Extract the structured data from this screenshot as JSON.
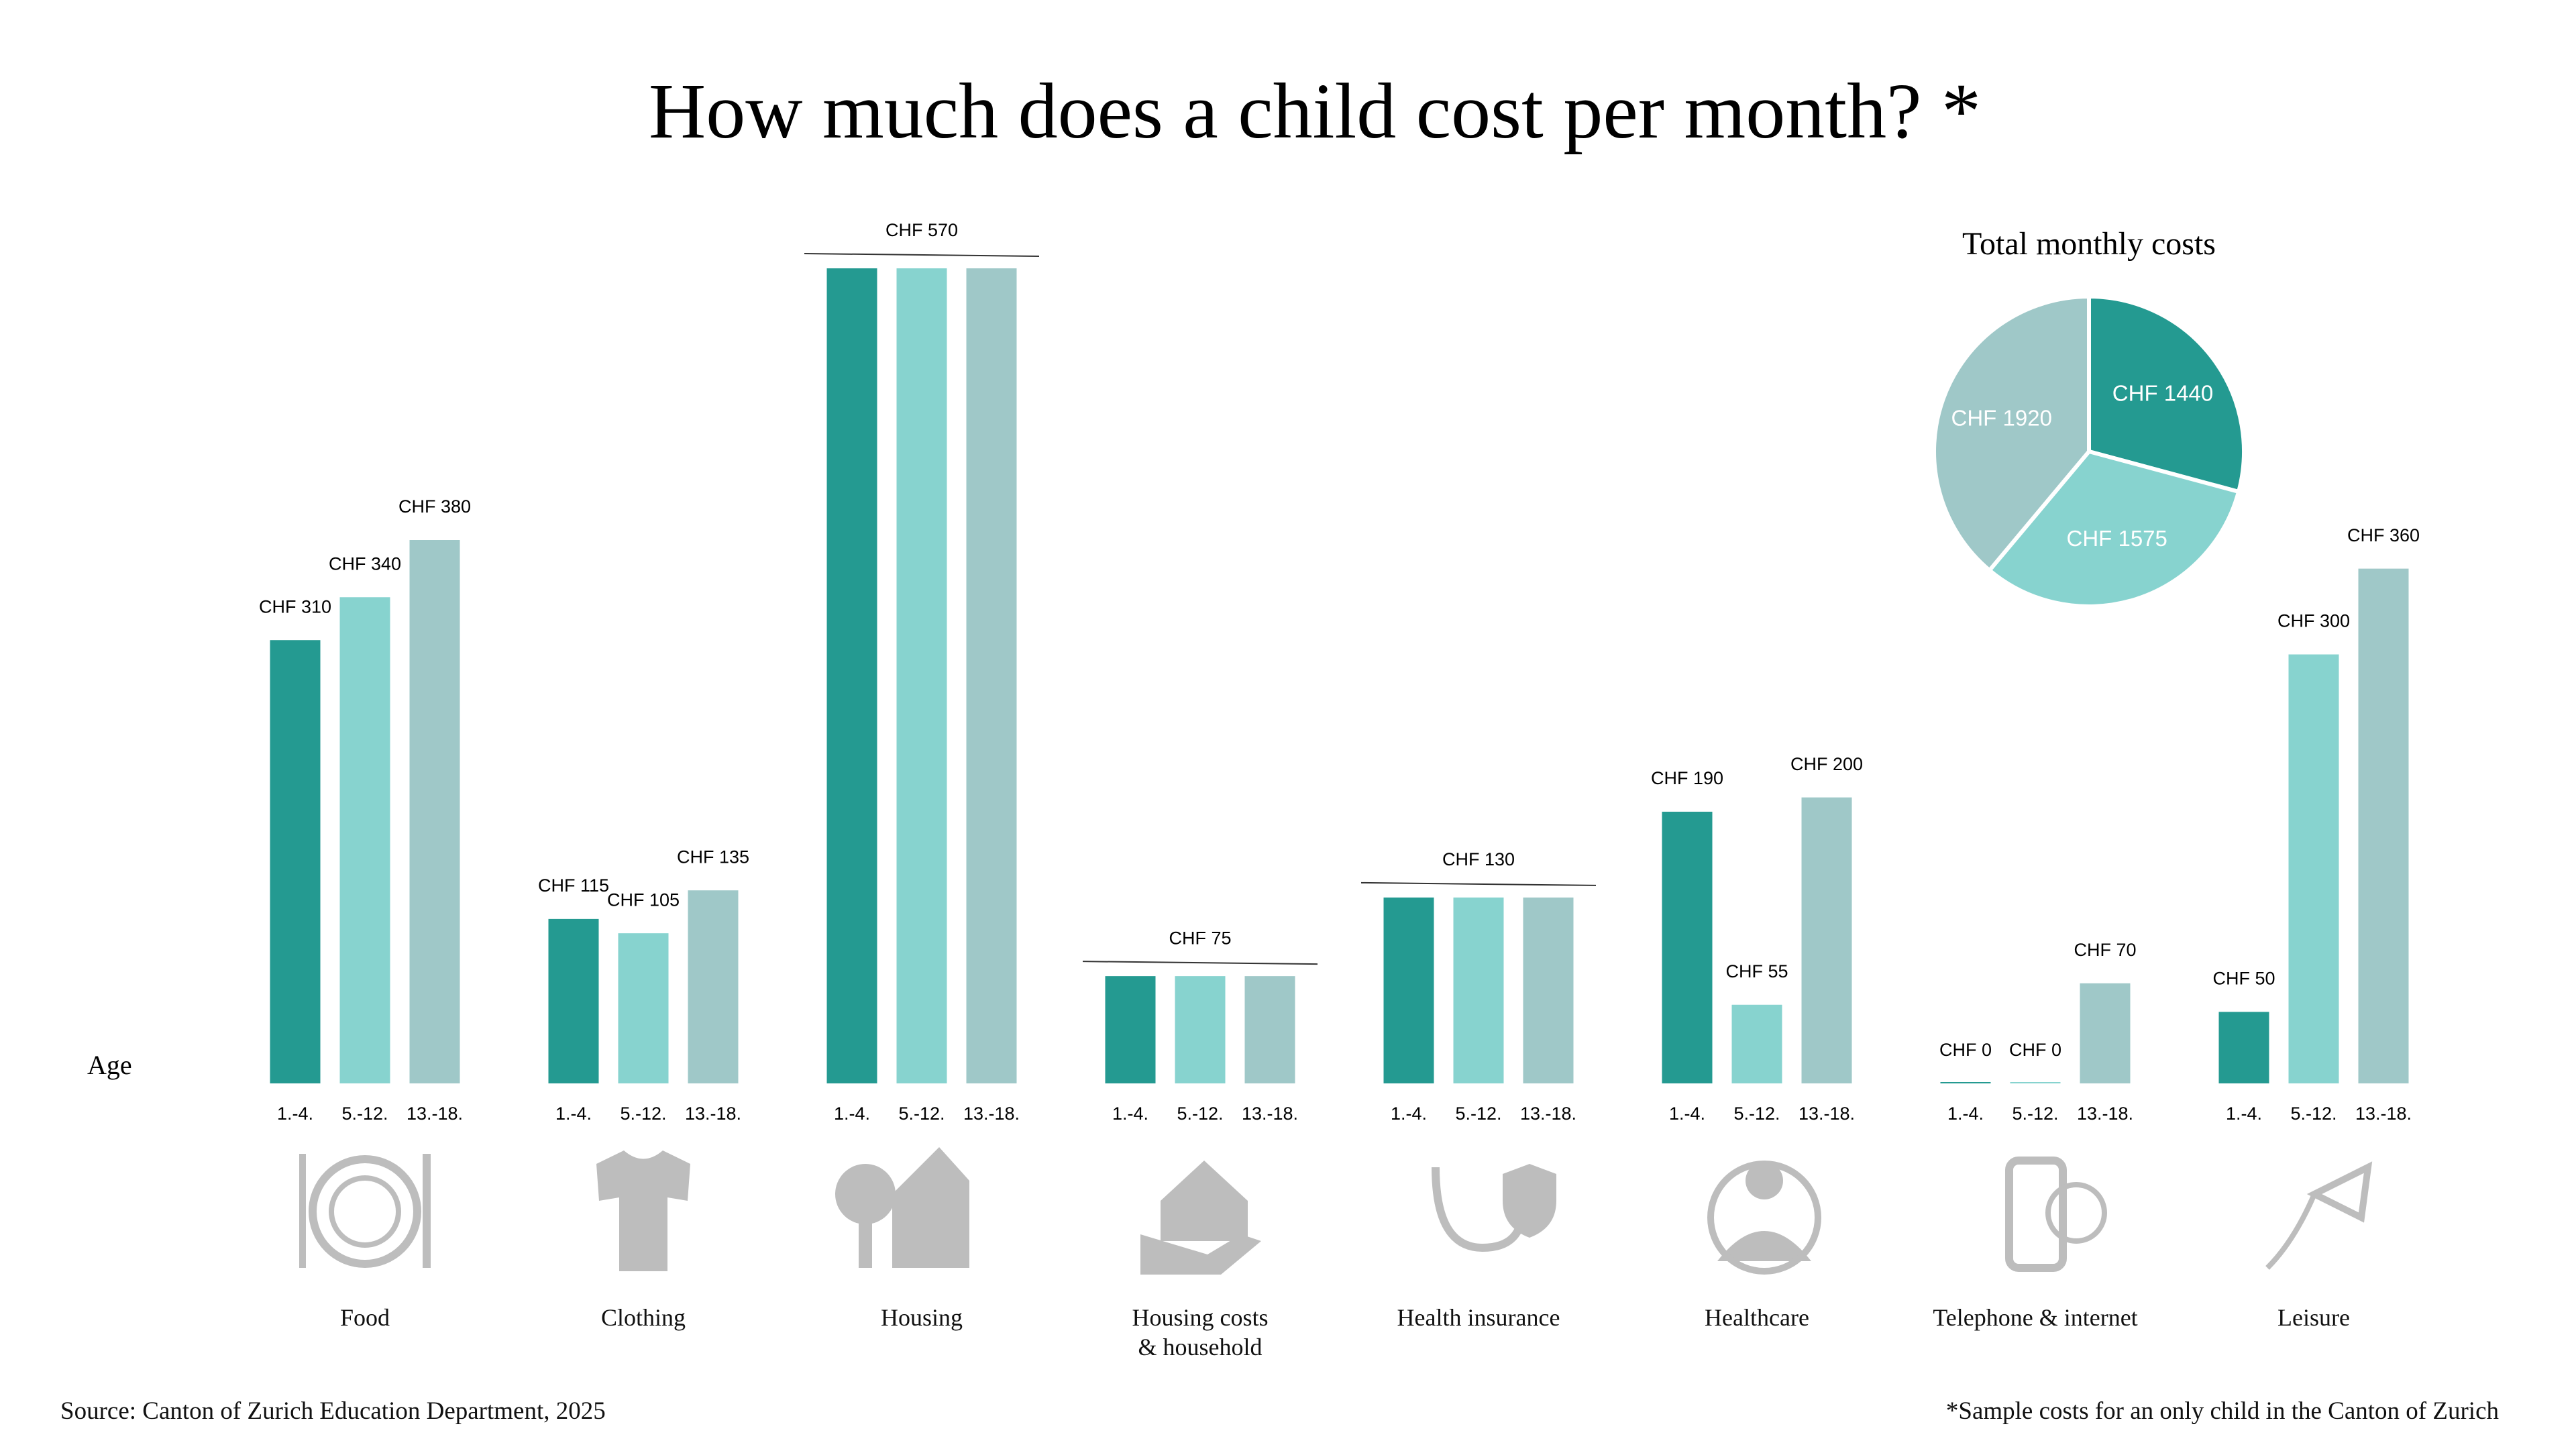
{
  "chart_data": [
    {
      "type": "bar",
      "title": "How much does a child cost per month? *",
      "xlabel": "Age",
      "categories": [
        "Food",
        "Clothing",
        "Housing",
        "Housing costs\n& household",
        "Health insurance",
        "Healthcare",
        "Telephone & internet",
        "Leisure"
      ],
      "series": [
        {
          "name": "1.-4.",
          "color": "#249a91",
          "values": [
            310,
            115,
            570,
            75,
            130,
            190,
            0,
            50
          ],
          "value_labels": [
            "CHF 310",
            "CHF 115",
            null,
            null,
            null,
            "CHF 190",
            "CHF 0",
            "CHF 50"
          ]
        },
        {
          "name": "5.-12.",
          "color": "#87d3cf",
          "values": [
            340,
            105,
            570,
            75,
            130,
            55,
            0,
            300
          ],
          "value_labels": [
            "CHF 340",
            "CHF 105",
            null,
            null,
            null,
            "CHF 55",
            "CHF 0",
            "CHF 300"
          ]
        },
        {
          "name": "13.-18.",
          "color": "#9fc8c8",
          "values": [
            380,
            135,
            570,
            75,
            130,
            200,
            70,
            360
          ],
          "value_labels": [
            "CHF 380",
            "CHF 135",
            null,
            null,
            null,
            "CHF 200",
            "CHF 70",
            "CHF 360"
          ]
        }
      ],
      "group_labels": [
        null,
        null,
        "CHF 570",
        "CHF 75",
        "CHF 130",
        null,
        null,
        null
      ],
      "source": "Source: Canton of Zurich Education Department, 2025",
      "note": "*Sample costs for an only child in the Canton of Zurich"
    },
    {
      "type": "pie",
      "title": "Total monthly costs",
      "values": [
        1440,
        1575,
        1920
      ],
      "value_labels": [
        "CHF 1440",
        "CHF 1575",
        "CHF 1920"
      ],
      "colors": [
        "#249a91",
        "#87d3cf",
        "#9fc8c8"
      ]
    }
  ]
}
